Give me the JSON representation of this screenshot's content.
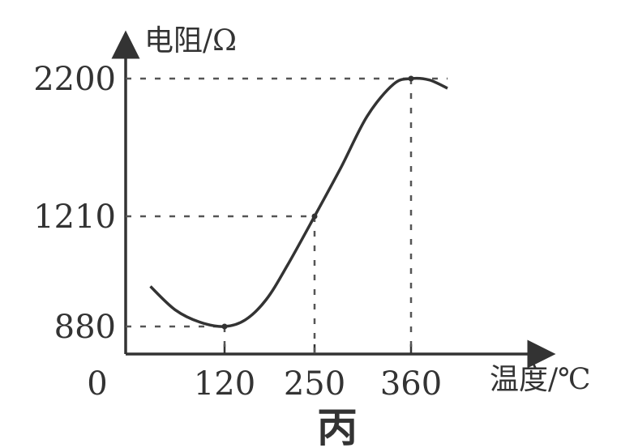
{
  "chart_data": {
    "type": "line",
    "caption": "丙",
    "xlabel": "温度/℃",
    "ylabel": "电阻/Ω",
    "origin_label": "0",
    "x_ticks": [
      {
        "value": 120,
        "label": "120"
      },
      {
        "value": 250,
        "label": "250"
      },
      {
        "value": 360,
        "label": "360"
      }
    ],
    "y_ticks": [
      {
        "value": 880,
        "label": "880"
      },
      {
        "value": 1210,
        "label": "1210"
      },
      {
        "value": 2200,
        "label": "2200"
      }
    ],
    "series": [
      {
        "points": [
          {
            "x": 30,
            "y": 1000
          },
          {
            "x": 60,
            "y": 930
          },
          {
            "x": 90,
            "y": 893
          },
          {
            "x": 120,
            "y": 880
          },
          {
            "x": 150,
            "y": 900
          },
          {
            "x": 180,
            "y": 960
          },
          {
            "x": 210,
            "y": 1060
          },
          {
            "x": 250,
            "y": 1210
          },
          {
            "x": 280,
            "y": 1560
          },
          {
            "x": 310,
            "y": 1930
          },
          {
            "x": 340,
            "y": 2160
          },
          {
            "x": 360,
            "y": 2200
          },
          {
            "x": 380,
            "y": 2190
          },
          {
            "x": 400,
            "y": 2130
          }
        ]
      }
    ],
    "marked_points": [
      {
        "x": 120,
        "y": 880
      },
      {
        "x": 250,
        "y": 1210
      },
      {
        "x": 360,
        "y": 2200
      }
    ],
    "grid": false,
    "colors": {
      "ink": "#333333",
      "dash": "#555555"
    }
  }
}
